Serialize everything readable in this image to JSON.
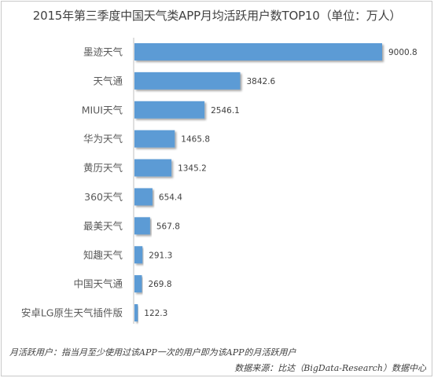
{
  "chart_data": {
    "type": "bar",
    "orientation": "horizontal",
    "title": "2015年第三季度中国天气类APP月均活跃用户数TOP10（单位：万人）",
    "categories": [
      "墨迹天气",
      "天气通",
      "MIUI天气",
      "华为天气",
      "黄历天气",
      "360天气",
      "最美天气",
      "知趣天气",
      "中国天气通",
      "安卓LG原生天气插件版"
    ],
    "values": [
      9000.8,
      3842.6,
      2546.1,
      1465.8,
      1345.2,
      654.4,
      567.8,
      291.3,
      269.8,
      122.3
    ],
    "value_labels": [
      "9000.8",
      "3842.6",
      "2546.1",
      "1465.8",
      "1345.2",
      "654.4",
      "567.8",
      "291.3",
      "269.8",
      "122.3"
    ],
    "xlim": [
      0,
      9000.8
    ],
    "grid": false,
    "legend": "none",
    "bar_color": "#5b9bd5"
  },
  "footnotes": {
    "definition": "月活跃用户：指当月至少使用过该APP一次的用户即为该APP的月活跃用户",
    "source": "数据来源：比达（BigData-Research）数据中心"
  }
}
